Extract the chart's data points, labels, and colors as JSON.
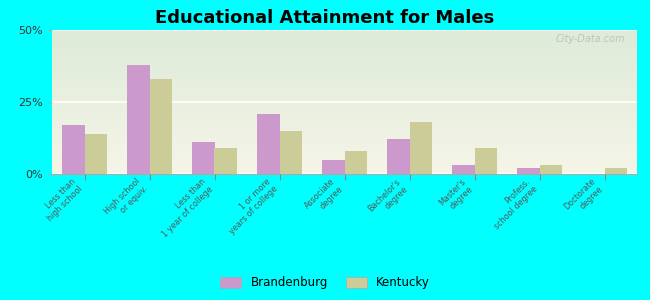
{
  "title": "Educational Attainment for Males",
  "categories": [
    "Less than\nhigh school",
    "High school\nor equiv.",
    "Less than\n1 year of college",
    "1 or more\nyears of college",
    "Associate\ndegree",
    "Bachelor's\ndegree",
    "Master's\ndegree",
    "Profess.\nschool degree",
    "Doctorate\ndegree"
  ],
  "brandenburg": [
    17,
    38,
    11,
    21,
    5,
    12,
    3,
    2,
    0
  ],
  "kentucky": [
    14,
    33,
    9,
    15,
    8,
    18,
    9,
    3,
    2
  ],
  "brandenburg_color": "#cc99cc",
  "kentucky_color": "#cccc99",
  "bg_color": "#00ffff",
  "ylim": [
    0,
    50
  ],
  "yticks": [
    0,
    25,
    50
  ],
  "ytick_labels": [
    "0%",
    "25%",
    "50%"
  ],
  "watermark": "City-Data.com",
  "legend_labels": [
    "Brandenburg",
    "Kentucky"
  ],
  "bar_width": 0.35,
  "title_fontsize": 13
}
